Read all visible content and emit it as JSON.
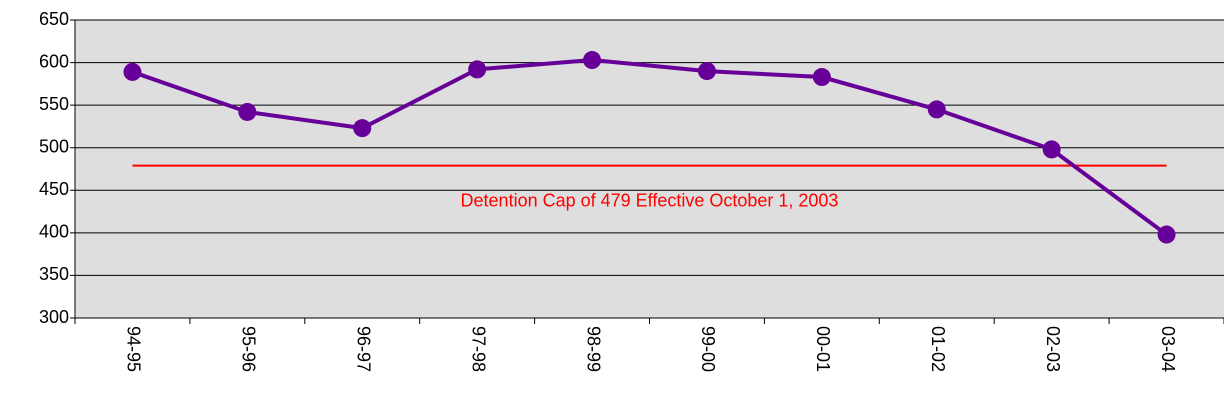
{
  "chart_data": {
    "type": "line",
    "categories": [
      "94-95",
      "95-96",
      "96-97",
      "97-98",
      "98-99",
      "99-00",
      "00-01",
      "01-02",
      "02-03",
      "03-04"
    ],
    "values": [
      589,
      542,
      523,
      592,
      603,
      590,
      583,
      545,
      498,
      398
    ],
    "color": "#660099",
    "ylim": [
      300,
      650
    ],
    "yticks": [
      300,
      350,
      400,
      450,
      500,
      550,
      600,
      650
    ],
    "grid": true,
    "reference_line": {
      "value": 479,
      "color": "#ff0000",
      "label": "Detention Cap of 479 Effective October 1, 2003"
    }
  }
}
